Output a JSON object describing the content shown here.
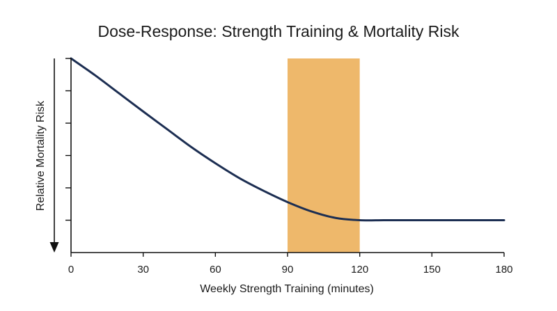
{
  "chart_data": {
    "type": "line",
    "title": "Dose-Response: Strength Training & Mortality Risk",
    "xlabel": "Weekly Strength Training (minutes)",
    "ylabel": "Relative Mortality Risk",
    "xlim": [
      0,
      180
    ],
    "ylim": [
      0,
      6
    ],
    "x_ticks": [
      0,
      30,
      60,
      90,
      120,
      150,
      180
    ],
    "x_tick_labels": [
      "0",
      "30",
      "60",
      "90",
      "120",
      "150",
      "180"
    ],
    "y_ticks": [
      1,
      2,
      3,
      4,
      5,
      6
    ],
    "y_tick_labels_shown": false,
    "y_axis_arrow": "down",
    "grid": false,
    "legend": "none",
    "highlight_band": {
      "x_start": 90,
      "x_end": 120,
      "color": "#eeb86b"
    },
    "series": [
      {
        "color": "#1c2e52",
        "x": [
          0,
          10,
          20,
          30,
          40,
          50,
          60,
          70,
          80,
          90,
          100,
          110,
          120,
          130,
          140,
          150,
          160,
          170,
          180
        ],
        "y": [
          6.0,
          5.48,
          4.92,
          4.36,
          3.81,
          3.26,
          2.76,
          2.3,
          1.91,
          1.56,
          1.27,
          1.07,
          1.0,
          1.0,
          1.0,
          1.0,
          1.0,
          1.0,
          1.0
        ]
      }
    ]
  }
}
